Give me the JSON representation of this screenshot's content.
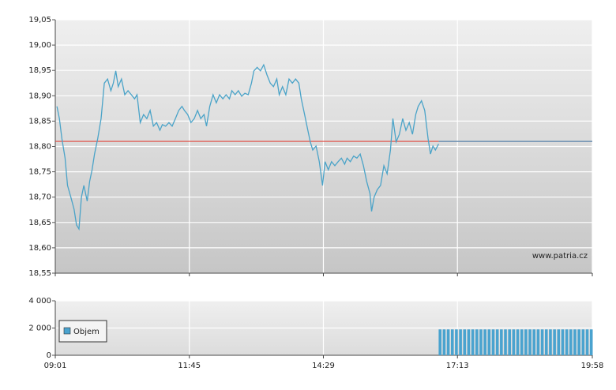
{
  "chart_data": [
    {
      "type": "line",
      "color": "#4aa3c8",
      "watermark": "www.patria.cz",
      "xlim": [
        541,
        1198
      ],
      "ylim": [
        18.55,
        19.05
      ],
      "yticks": [
        {
          "value": 18.55,
          "label": "18,55"
        },
        {
          "value": 18.6,
          "label": "18,60"
        },
        {
          "value": 18.65,
          "label": "18,65"
        },
        {
          "value": 18.7,
          "label": "18,70"
        },
        {
          "value": 18.75,
          "label": "18,75"
        },
        {
          "value": 18.8,
          "label": "18,80"
        },
        {
          "value": 18.85,
          "label": "18,85"
        },
        {
          "value": 18.9,
          "label": "18,90"
        },
        {
          "value": 18.95,
          "label": "18,95"
        },
        {
          "value": 19.0,
          "label": "19,00"
        },
        {
          "value": 19.05,
          "label": "19,05"
        }
      ],
      "grid": true,
      "reference": {
        "value": 18.81,
        "color": "#e0463c",
        "color_after": "#6c8fb0"
      },
      "x": [
        543,
        546,
        549,
        553,
        556,
        560,
        564,
        567,
        570,
        573,
        576,
        580,
        583,
        586,
        589,
        593,
        597,
        601,
        605,
        609,
        612,
        615,
        618,
        622,
        626,
        630,
        634,
        638,
        641,
        645,
        649,
        653,
        657,
        661,
        665,
        669,
        672,
        676,
        680,
        684,
        688,
        692,
        696,
        699,
        703,
        707,
        711,
        715,
        719,
        723,
        726,
        730,
        734,
        738,
        742,
        746,
        750,
        754,
        757,
        761,
        765,
        769,
        773,
        777,
        781,
        784,
        788,
        792,
        796,
        800,
        804,
        808,
        812,
        815,
        819,
        823,
        827,
        831,
        835,
        839,
        842,
        846,
        850,
        853,
        856,
        860,
        864,
        868,
        871,
        875,
        879,
        883,
        887,
        891,
        895,
        898,
        902,
        906,
        910,
        914,
        918,
        922,
        926,
        928,
        931,
        935,
        939,
        943,
        947,
        951,
        954,
        958,
        962,
        966,
        970,
        974,
        978,
        982,
        985,
        989,
        993,
        997,
        1000,
        1003,
        1006,
        1010
      ],
      "values": [
        18.879,
        18.855,
        18.816,
        18.777,
        18.723,
        18.7,
        18.676,
        18.645,
        18.637,
        18.7,
        18.723,
        18.692,
        18.731,
        18.754,
        18.785,
        18.816,
        18.855,
        18.925,
        18.933,
        18.91,
        18.925,
        18.949,
        18.918,
        18.933,
        18.902,
        18.91,
        18.902,
        18.894,
        18.902,
        18.847,
        18.863,
        18.855,
        18.871,
        18.84,
        18.847,
        18.832,
        18.843,
        18.84,
        18.847,
        18.84,
        18.855,
        18.871,
        18.879,
        18.871,
        18.863,
        18.847,
        18.855,
        18.871,
        18.855,
        18.863,
        18.84,
        18.879,
        18.902,
        18.886,
        18.902,
        18.894,
        18.902,
        18.894,
        18.91,
        18.902,
        18.91,
        18.899,
        18.905,
        18.902,
        18.925,
        18.949,
        18.956,
        18.949,
        18.961,
        18.941,
        18.925,
        18.918,
        18.933,
        18.902,
        18.918,
        18.902,
        18.933,
        18.925,
        18.933,
        18.925,
        18.894,
        18.863,
        18.832,
        18.809,
        18.793,
        18.801,
        18.77,
        18.723,
        18.77,
        18.754,
        18.77,
        18.762,
        18.77,
        18.777,
        18.765,
        18.777,
        18.77,
        18.781,
        18.777,
        18.785,
        18.762,
        18.731,
        18.707,
        18.672,
        18.7,
        18.715,
        18.723,
        18.762,
        18.746,
        18.793,
        18.855,
        18.809,
        18.824,
        18.855,
        18.832,
        18.847,
        18.824,
        18.863,
        18.879,
        18.89,
        18.871,
        18.816,
        18.785,
        18.801,
        18.793,
        18.805
      ]
    },
    {
      "type": "bar",
      "xlim": [
        541,
        1198
      ],
      "ylim": [
        0,
        4000
      ],
      "yticks": [
        0,
        {
          "value": 2000,
          "label": "2 000"
        },
        {
          "value": 4000,
          "label": "4 000"
        }
      ],
      "xticks": [
        {
          "value": 541,
          "label": "09:01"
        },
        {
          "value": 705,
          "label": "11:45"
        },
        {
          "value": 869,
          "label": "14:29"
        },
        {
          "value": 1033,
          "label": "17:13"
        },
        {
          "value": 1198,
          "label": "19:58"
        }
      ],
      "grid": true,
      "series": [
        {
          "name": "Objem",
          "color": "#4aa3cf",
          "x": [
            1010,
            1015,
            1020,
            1025,
            1030,
            1035,
            1040,
            1045,
            1050,
            1055,
            1060,
            1065,
            1070,
            1075,
            1080,
            1085,
            1090,
            1095,
            1100,
            1105,
            1110,
            1115,
            1120,
            1125,
            1130,
            1135,
            1140,
            1145,
            1150,
            1155,
            1160,
            1165,
            1170,
            1175,
            1180,
            1185,
            1190,
            1195
          ],
          "values": [
            1900,
            1900,
            1900,
            1900,
            1900,
            1900,
            1900,
            1900,
            1900,
            1900,
            1900,
            1900,
            1900,
            1900,
            1900,
            1900,
            1900,
            1900,
            1900,
            1900,
            1900,
            1900,
            1900,
            1900,
            1900,
            1900,
            1900,
            1900,
            1900,
            1900,
            1900,
            1900,
            1900,
            1900,
            1900,
            1900,
            1900,
            1900
          ]
        }
      ]
    }
  ]
}
